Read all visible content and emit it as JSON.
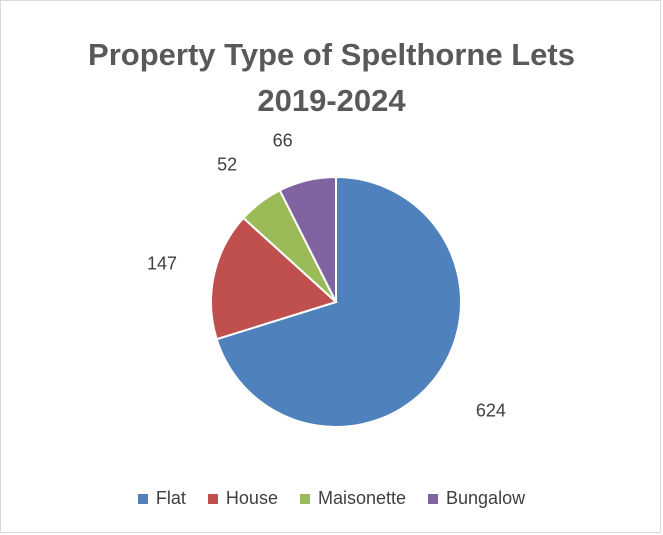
{
  "chart_data": {
    "type": "pie",
    "title": "Property Type of Spelthorne Lets 2019-2024",
    "categories": [
      "Flat",
      "House",
      "Maisonette",
      "Bungalow"
    ],
    "values": [
      624,
      147,
      52,
      66
    ],
    "colors": [
      "#4f81bd",
      "#c0504d",
      "#9bbb59",
      "#8064a2"
    ],
    "start_angle_deg": 0,
    "direction": "clockwise",
    "data_labels": [
      "624",
      "147",
      "52",
      "66"
    ],
    "legend_position": "bottom"
  }
}
